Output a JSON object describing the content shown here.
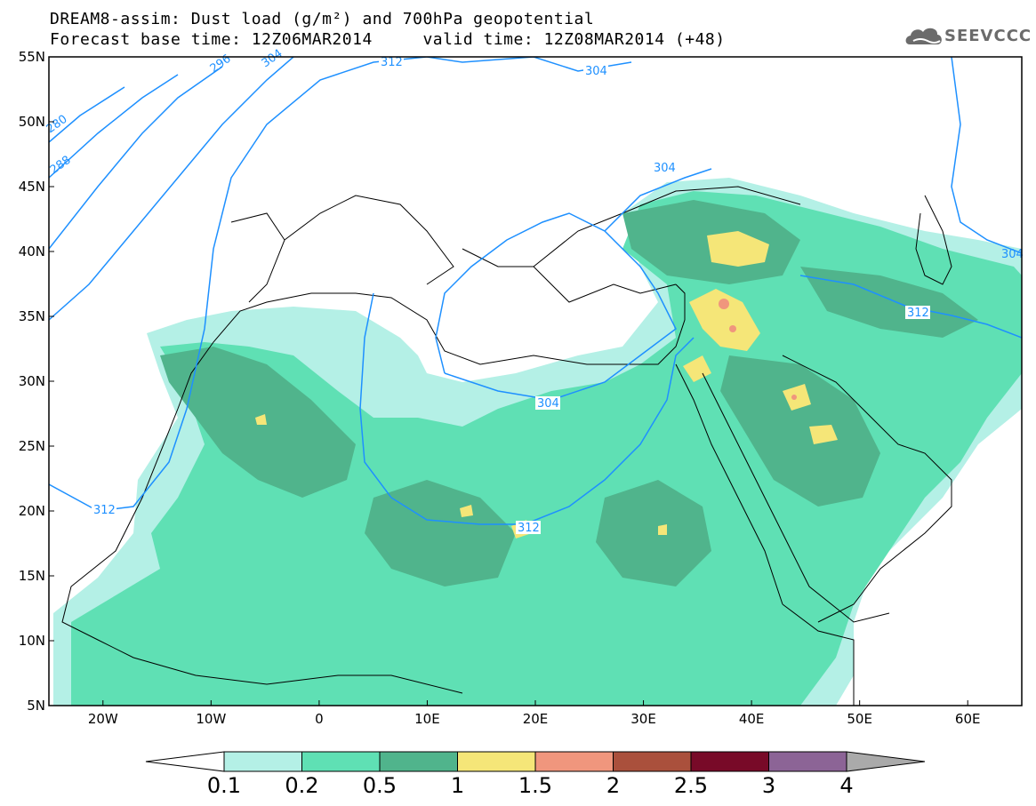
{
  "title": {
    "line1": "DREAM8-assim: Dust load (g/m²) and 700hPa geopotential",
    "line2": "Forecast base time: 12Z06MAR2014     valid time: 12Z08MAR2014 (+48)"
  },
  "logo": {
    "text": "SEEVCCC",
    "icon": "cloud-logo-icon"
  },
  "map": {
    "lon_range": [
      -25,
      65
    ],
    "lat_range": [
      5,
      55
    ],
    "lat_ticks": [
      "55N",
      "50N",
      "45N",
      "40N",
      "35N",
      "30N",
      "25N",
      "20N",
      "15N",
      "10N",
      "5N"
    ],
    "lon_ticks": [
      "20W",
      "10W",
      "0",
      "10E",
      "20E",
      "30E",
      "40E",
      "50E",
      "60E"
    ]
  },
  "isolines": {
    "color": "#1e90ff",
    "labels": [
      "312",
      "304",
      "296",
      "304",
      "280",
      "288",
      "304",
      "312",
      "304",
      "312",
      "312",
      "304"
    ]
  },
  "colorbar": {
    "thresholds": [
      "0.1",
      "0.2",
      "0.5",
      "1",
      "1.5",
      "2",
      "2.5",
      "3",
      "4"
    ],
    "colors": [
      "#b4f0e6",
      "#5fe0b4",
      "#50b48c",
      "#f5e678",
      "#f0967d",
      "#aa503c",
      "#780a28",
      "#8c6496",
      "#aaaaaa"
    ]
  }
}
